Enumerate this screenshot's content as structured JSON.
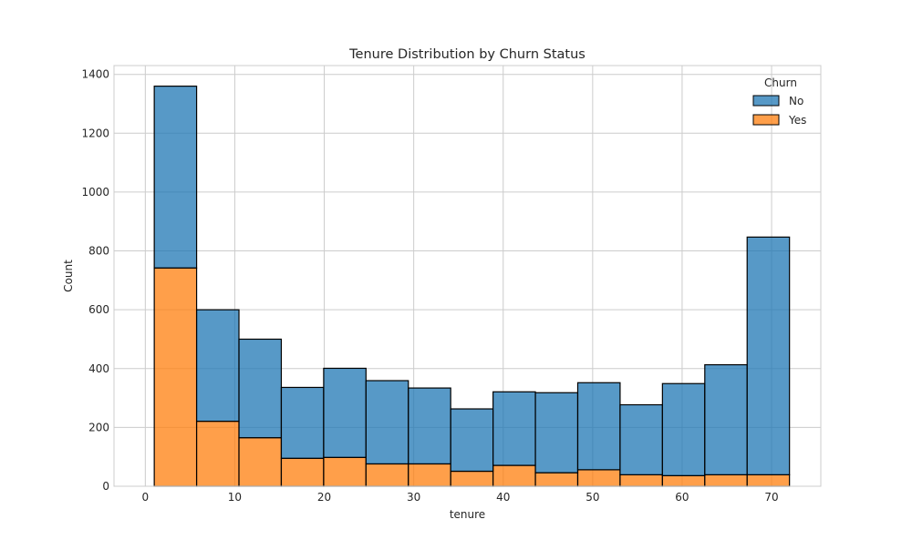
{
  "chart_data": {
    "type": "bar",
    "stacked": true,
    "title": "Tenure Distribution by Churn Status",
    "xlabel": "tenure",
    "ylabel": "Count",
    "xlim": [
      -3.5,
      75.5
    ],
    "ylim": [
      0,
      1430
    ],
    "xticks": [
      0,
      10,
      20,
      30,
      40,
      50,
      60,
      70
    ],
    "yticks": [
      0,
      200,
      400,
      600,
      800,
      1000,
      1200,
      1400
    ],
    "grid": true,
    "bin_edges": [
      1,
      5.7333,
      10.4667,
      15.2,
      19.9333,
      24.6667,
      29.4,
      34.1333,
      38.8667,
      43.6,
      48.3333,
      53.0667,
      57.8,
      62.5333,
      67.2667,
      72
    ],
    "series": [
      {
        "name": "Yes",
        "color": "#ff7f0e",
        "values": [
          742,
          221,
          165,
          95,
          98,
          76,
          76,
          51,
          71,
          46,
          56,
          39,
          36,
          39,
          39
        ]
      },
      {
        "name": "No",
        "color": "#1f77b4",
        "values": [
          618,
          379,
          335,
          241,
          303,
          283,
          258,
          212,
          250,
          272,
          296,
          238,
          313,
          374,
          808
        ]
      }
    ],
    "legend": {
      "title": "Churn",
      "placement": "top-right",
      "entries": [
        {
          "label": "No",
          "color": "#1f77b4"
        },
        {
          "label": "Yes",
          "color": "#ff7f0e"
        }
      ]
    }
  }
}
